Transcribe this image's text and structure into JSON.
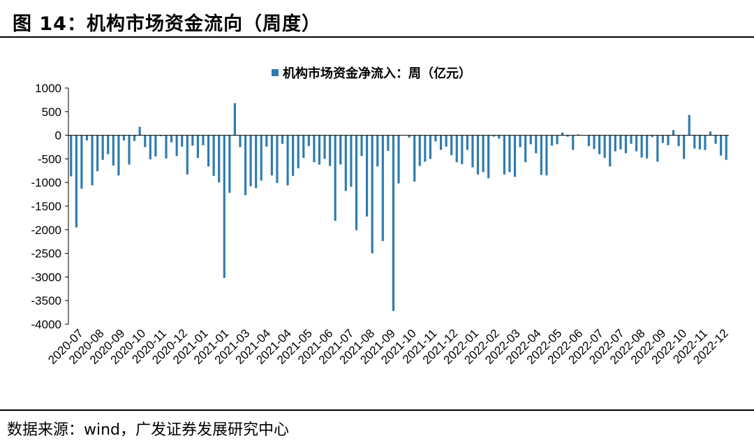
{
  "figure": {
    "label": "图 14：机构市场资金流向（周度）",
    "source": "数据来源：wind，广发证券发展研究中心"
  },
  "colors": {
    "bar": "#2e7bb0",
    "axis": "#000000"
  },
  "chart_data": {
    "type": "bar",
    "title": "",
    "legend": [
      "机构市场资金净流入：周（亿元）"
    ],
    "legend_position": "top-center",
    "xlabel": "",
    "ylabel": "",
    "ylim": [
      -4000,
      1000
    ],
    "yticks": [
      1000,
      500,
      0,
      -500,
      -1000,
      -1500,
      -2000,
      -2500,
      -3000,
      -3500,
      -4000
    ],
    "xtick_labels": [
      "2020-07",
      "2020-08",
      "2020-09",
      "2020-10",
      "2020-11",
      "2020-12",
      "2021-01",
      "2021-01",
      "2021-03",
      "2021-04",
      "2021-04",
      "2021-05",
      "2021-06",
      "2021-07",
      "2021-08",
      "2021-09",
      "2021-10",
      "2021-11",
      "2021-12",
      "2022-01",
      "2022-02",
      "2022-03",
      "2022-04",
      "2022-05",
      "2022-06",
      "2022-07",
      "2022-07",
      "2022-08",
      "2022-09",
      "2022-10",
      "2022-11",
      "2022-12"
    ],
    "series": [
      {
        "name": "机构市场资金净流入：周（亿元）",
        "values": [
          -870,
          -1950,
          -1130,
          -110,
          -1060,
          -760,
          -520,
          -400,
          -640,
          -850,
          -110,
          -620,
          -120,
          180,
          -250,
          -510,
          -450,
          -20,
          -490,
          -150,
          -440,
          -240,
          -830,
          -220,
          -480,
          -210,
          -660,
          -860,
          -1000,
          -3020,
          -1220,
          680,
          -250,
          -1270,
          -1080,
          -1120,
          -960,
          -240,
          -850,
          -1010,
          -180,
          -1060,
          -860,
          -700,
          -480,
          -230,
          -570,
          -620,
          -500,
          -650,
          -1810,
          -620,
          -1180,
          -1090,
          -2010,
          -440,
          -1720,
          -2500,
          -660,
          -2240,
          -330,
          -3720,
          -1020,
          0,
          -50,
          -980,
          -650,
          -560,
          -500,
          -130,
          -310,
          -240,
          -420,
          -570,
          -610,
          -310,
          -680,
          -830,
          -780,
          -910,
          -30,
          -70,
          -830,
          -780,
          -880,
          -250,
          -570,
          -190,
          -380,
          -840,
          -850,
          -220,
          -190,
          60,
          -30,
          -310,
          20,
          0,
          -230,
          -290,
          -400,
          -480,
          -660,
          -340,
          -300,
          -380,
          -180,
          -340,
          -470,
          -490,
          -40,
          -560,
          -160,
          -210,
          110,
          -230,
          -500,
          430,
          -280,
          -300,
          -310,
          80,
          -180,
          -430,
          -520
        ]
      }
    ]
  }
}
